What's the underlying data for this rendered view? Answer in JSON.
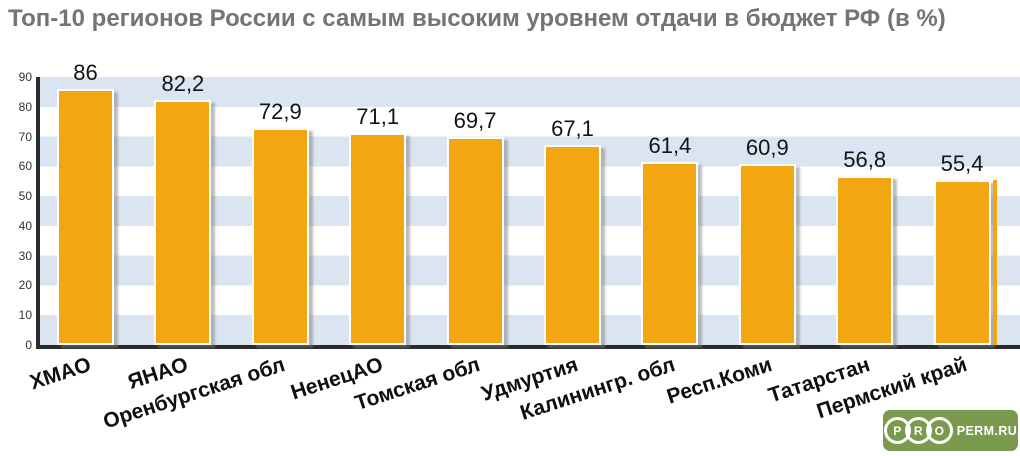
{
  "title": "Топ-10 регионов России с самым высоким уровнем отдачи в бюджет РФ (в %)",
  "chart_data": {
    "type": "bar",
    "title": "Топ-10 регионов России с самым высоким уровнем отдачи в бюджет РФ (в %)",
    "categories": [
      "ХМАО",
      "ЯНАО",
      "Оренбургская обл",
      "НенецАО",
      "Томская обл",
      "Удмуртия",
      "Калинингр. обл",
      "Респ.Коми",
      "Татарстан",
      "Пермский край"
    ],
    "values": [
      86,
      82.2,
      72.9,
      71.1,
      69.7,
      67.1,
      61.4,
      60.9,
      56.8,
      55.4
    ],
    "value_labels": [
      "86",
      "82,2",
      "72,9",
      "71,1",
      "69,7",
      "67,1",
      "61,4",
      "60,9",
      "56,8",
      "55,4"
    ],
    "yticks": [
      0,
      10,
      20,
      30,
      40,
      50,
      60,
      70,
      80,
      90
    ],
    "ylim": [
      0,
      90
    ],
    "xlabel": "",
    "ylabel": "",
    "legend": "none",
    "grid": "alternating horizontal bands, 10 units each",
    "band_color": "#DBE5F1",
    "bar_color": "#F2A611",
    "bar_stroke": "#FFFFFF",
    "axis_color": "#2B2B2B",
    "title_color": "#737478",
    "category_label_rotation_deg": -18
  },
  "logo": {
    "letters": [
      "P",
      "R",
      "O"
    ],
    "text": "PERM.RU",
    "bg_color": "#7A9A4D",
    "fg_color": "#FFFFFF"
  }
}
